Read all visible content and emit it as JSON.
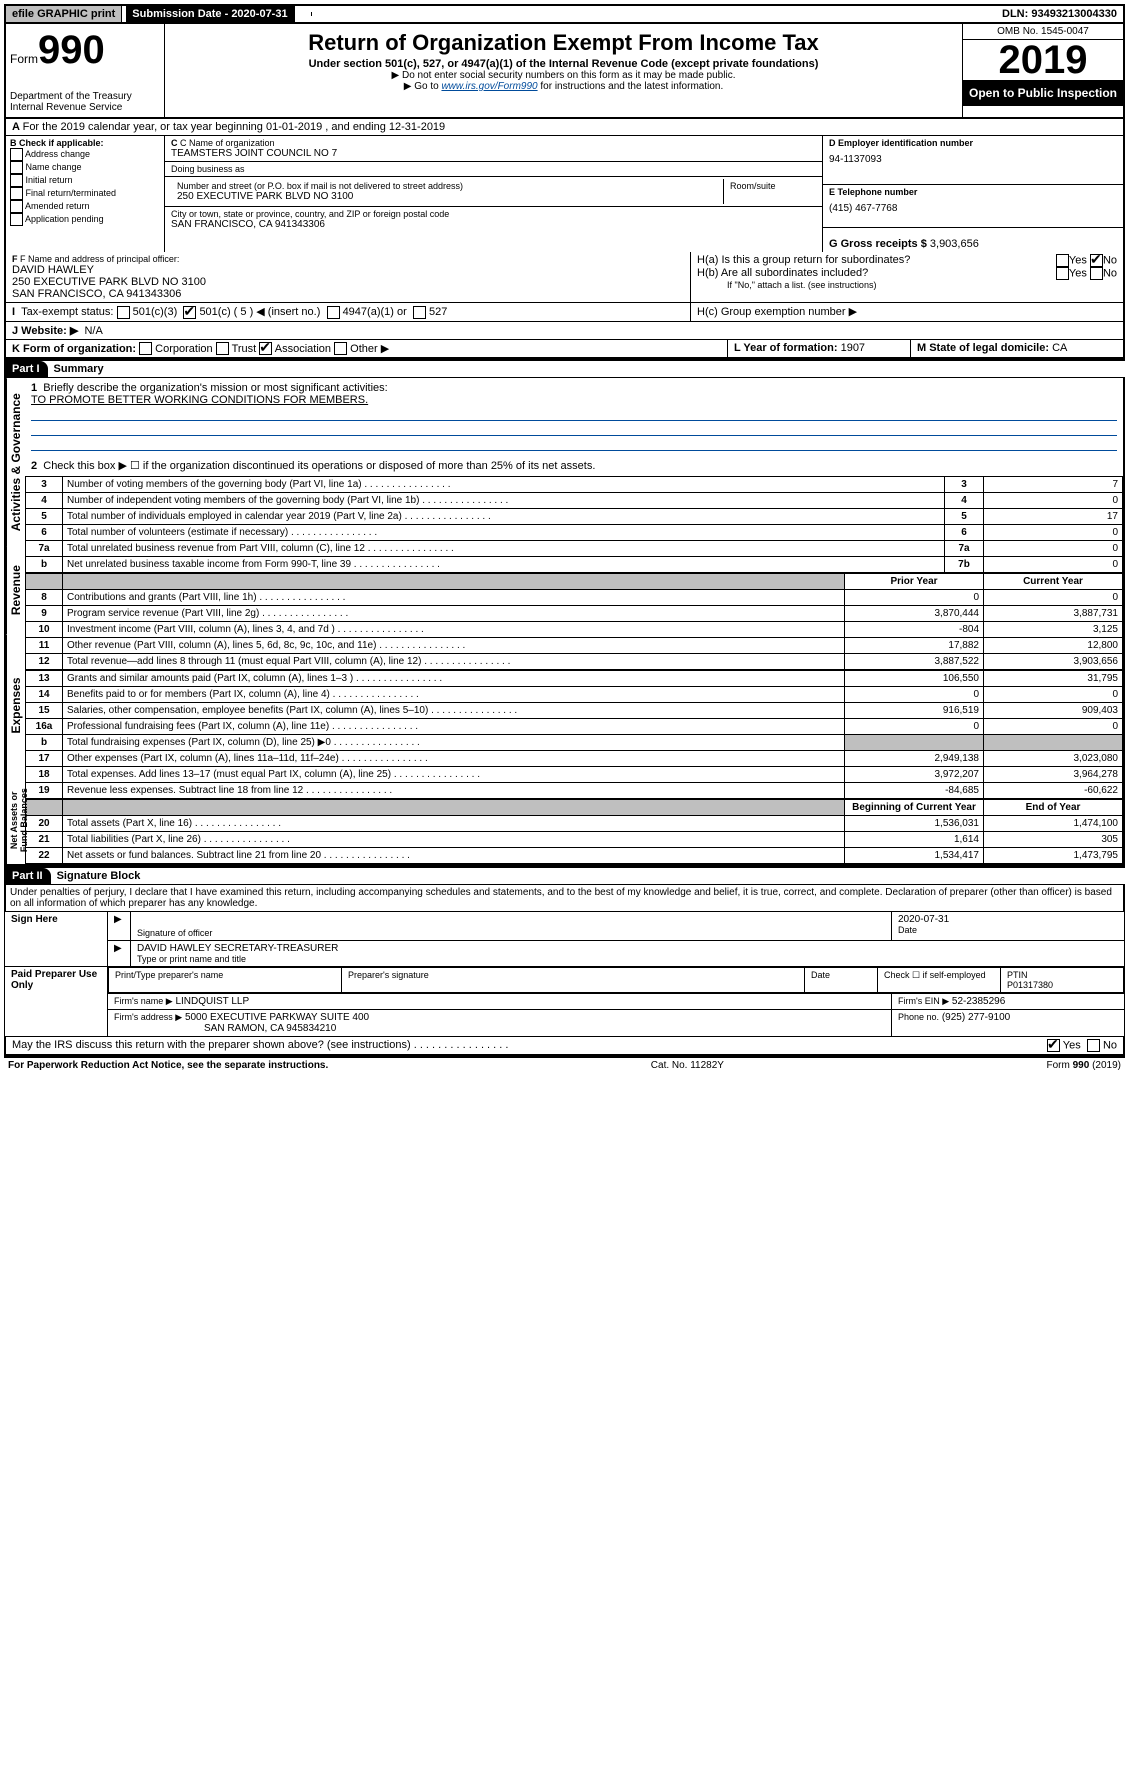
{
  "top": {
    "efile": "efile GRAPHIC print",
    "submission_label": "Submission Date - 2020-07-31",
    "dln": "DLN: 93493213004330"
  },
  "header": {
    "form_word": "Form",
    "form_number": "990",
    "dept": "Department of the Treasury\nInternal Revenue Service",
    "title": "Return of Organization Exempt From Income Tax",
    "subtitle": "Under section 501(c), 527, or 4947(a)(1) of the Internal Revenue Code (except private foundations)",
    "hint1": "▶ Do not enter social security numbers on this form as it may be made public.",
    "hint2_pre": "▶ Go to ",
    "hint2_link": "www.irs.gov/Form990",
    "hint2_post": " for instructions and the latest information.",
    "omb": "OMB No. 1545-0047",
    "year": "2019",
    "open": "Open to Public Inspection"
  },
  "periodA": "For the 2019 calendar year, or tax year beginning 01-01-2019    , and ending 12-31-2019",
  "blockB": {
    "label": "B Check if applicable:",
    "opts": [
      "Address change",
      "Name change",
      "Initial return",
      "Final return/terminated",
      "Amended return",
      "Application pending"
    ]
  },
  "blockC": {
    "name_label": "C Name of organization",
    "name": "TEAMSTERS JOINT COUNCIL NO 7",
    "dba_label": "Doing business as",
    "dba": "",
    "street_label": "Number and street (or P.O. box if mail is not delivered to street address)",
    "room_label": "Room/suite",
    "street": "250 EXECUTIVE PARK BLVD NO 3100",
    "city_label": "City or town, state or province, country, and ZIP or foreign postal code",
    "city": "SAN FRANCISCO, CA  941343306"
  },
  "blockD": {
    "label": "D Employer identification number",
    "value": "94-1137093"
  },
  "blockE": {
    "label": "E Telephone number",
    "value": "(415) 467-7768"
  },
  "blockG": {
    "label": "G Gross receipts $",
    "value": "3,903,656"
  },
  "blockF": {
    "label": "F Name and address of principal officer:",
    "name": "DAVID HAWLEY",
    "addr1": "250 EXECUTIVE PARK BLVD NO 3100",
    "addr2": "SAN FRANCISCO, CA  941343306"
  },
  "blockH": {
    "a": "H(a)  Is this a group return for subordinates?",
    "b": "H(b)  Are all subordinates included?",
    "b_note": "If \"No,\" attach a list. (see instructions)",
    "c": "H(c)  Group exemption number ▶",
    "yes": "Yes",
    "no": "No"
  },
  "taxExempt": {
    "label": "Tax-exempt status:",
    "opt1": "501(c)(3)",
    "opt2": "501(c) ( 5 ) ◀ (insert no.)",
    "opt3": "4947(a)(1) or",
    "opt4": "527"
  },
  "blockJ": {
    "label": "J  Website: ▶",
    "value": "N/A"
  },
  "blockK": {
    "label": "K Form of organization:",
    "opts": [
      "Corporation",
      "Trust",
      "Association",
      "Other ▶"
    ]
  },
  "blockL": {
    "label": "L Year of formation:",
    "value": "1907"
  },
  "blockM": {
    "label": "M State of legal domicile:",
    "value": "CA"
  },
  "part1": {
    "header": "Part I",
    "title": "Summary"
  },
  "side_labels": {
    "gov": "Activities & Governance",
    "rev": "Revenue",
    "exp": "Expenses",
    "net": "Net Assets or Fund Balances"
  },
  "summary": {
    "q1": "Briefly describe the organization's mission or most significant activities:",
    "mission": "TO PROMOTE BETTER WORKING CONDITIONS FOR MEMBERS.",
    "q2": "Check this box ▶ ☐  if the organization discontinued its operations or disposed of more than 25% of its net assets.",
    "rows_gov": [
      {
        "n": "3",
        "t": "Number of voting members of the governing body (Part VI, line 1a)",
        "box": "3",
        "v": "7"
      },
      {
        "n": "4",
        "t": "Number of independent voting members of the governing body (Part VI, line 1b)",
        "box": "4",
        "v": "0"
      },
      {
        "n": "5",
        "t": "Total number of individuals employed in calendar year 2019 (Part V, line 2a)",
        "box": "5",
        "v": "17"
      },
      {
        "n": "6",
        "t": "Total number of volunteers (estimate if necessary)",
        "box": "6",
        "v": "0"
      },
      {
        "n": "7a",
        "t": "Total unrelated business revenue from Part VIII, column (C), line 12",
        "box": "7a",
        "v": "0"
      },
      {
        "n": "b",
        "t": "Net unrelated business taxable income from Form 990-T, line 39",
        "box": "7b",
        "v": "0"
      }
    ],
    "col_prior": "Prior Year",
    "col_current": "Current Year",
    "rows_rev": [
      {
        "n": "8",
        "t": "Contributions and grants (Part VIII, line 1h)",
        "p": "0",
        "c": "0"
      },
      {
        "n": "9",
        "t": "Program service revenue (Part VIII, line 2g)",
        "p": "3,870,444",
        "c": "3,887,731"
      },
      {
        "n": "10",
        "t": "Investment income (Part VIII, column (A), lines 3, 4, and 7d )",
        "p": "-804",
        "c": "3,125"
      },
      {
        "n": "11",
        "t": "Other revenue (Part VIII, column (A), lines 5, 6d, 8c, 9c, 10c, and 11e)",
        "p": "17,882",
        "c": "12,800"
      },
      {
        "n": "12",
        "t": "Total revenue—add lines 8 through 11 (must equal Part VIII, column (A), line 12)",
        "p": "3,887,522",
        "c": "3,903,656"
      }
    ],
    "rows_exp": [
      {
        "n": "13",
        "t": "Grants and similar amounts paid (Part IX, column (A), lines 1–3 )",
        "p": "106,550",
        "c": "31,795"
      },
      {
        "n": "14",
        "t": "Benefits paid to or for members (Part IX, column (A), line 4)",
        "p": "0",
        "c": "0"
      },
      {
        "n": "15",
        "t": "Salaries, other compensation, employee benefits (Part IX, column (A), lines 5–10)",
        "p": "916,519",
        "c": "909,403"
      },
      {
        "n": "16a",
        "t": "Professional fundraising fees (Part IX, column (A), line 11e)",
        "p": "0",
        "c": "0"
      },
      {
        "n": "b",
        "t": "Total fundraising expenses (Part IX, column (D), line 25) ▶0",
        "p": "",
        "c": "",
        "shaded": true
      },
      {
        "n": "17",
        "t": "Other expenses (Part IX, column (A), lines 11a–11d, 11f–24e)",
        "p": "2,949,138",
        "c": "3,023,080"
      },
      {
        "n": "18",
        "t": "Total expenses. Add lines 13–17 (must equal Part IX, column (A), line 25)",
        "p": "3,972,207",
        "c": "3,964,278"
      },
      {
        "n": "19",
        "t": "Revenue less expenses. Subtract line 18 from line 12",
        "p": "-84,685",
        "c": "-60,622"
      }
    ],
    "col_begin": "Beginning of Current Year",
    "col_end": "End of Year",
    "rows_net": [
      {
        "n": "20",
        "t": "Total assets (Part X, line 16)",
        "p": "1,536,031",
        "c": "1,474,100"
      },
      {
        "n": "21",
        "t": "Total liabilities (Part X, line 26)",
        "p": "1,614",
        "c": "305"
      },
      {
        "n": "22",
        "t": "Net assets or fund balances. Subtract line 21 from line 20",
        "p": "1,534,417",
        "c": "1,473,795"
      }
    ]
  },
  "part2": {
    "header": "Part II",
    "title": "Signature Block"
  },
  "perjury": "Under penalties of perjury, I declare that I have examined this return, including accompanying schedules and statements, and to the best of my knowledge and belief, it is true, correct, and complete. Declaration of preparer (other than officer) is based on all information of which preparer has any knowledge.",
  "sign": {
    "here": "Sign Here",
    "sig_label": "Signature of officer",
    "date_label": "Date",
    "date": "2020-07-31",
    "name_title": "DAVID HAWLEY  SECRETARY-TREASURER",
    "name_label": "Type or print name and title"
  },
  "paid": {
    "here": "Paid Preparer Use Only",
    "col_name": "Print/Type preparer's name",
    "col_sig": "Preparer's signature",
    "col_date": "Date",
    "check_label": "Check ☐ if self-employed",
    "ptin_label": "PTIN",
    "ptin": "P01317380",
    "firm_name_label": "Firm's name    ▶",
    "firm_name": "LINDQUIST LLP",
    "firm_ein_label": "Firm's EIN ▶",
    "firm_ein": "52-2385296",
    "firm_addr_label": "Firm's address ▶",
    "firm_addr1": "5000 EXECUTIVE PARKWAY SUITE 400",
    "firm_addr2": "SAN RAMON, CA  945834210",
    "phone_label": "Phone no.",
    "phone": "(925) 277-9100"
  },
  "discuss": "May the IRS discuss this return with the preparer shown above? (see instructions)",
  "footer": {
    "pra": "For Paperwork Reduction Act Notice, see the separate instructions.",
    "cat": "Cat. No. 11282Y",
    "form": "Form 990 (2019)"
  }
}
